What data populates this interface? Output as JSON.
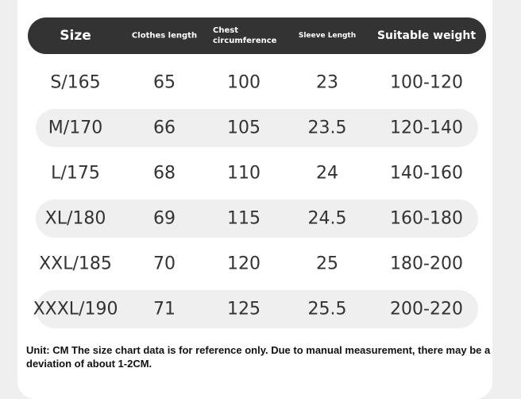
{
  "table": {
    "header": [
      "Size",
      "Clothes length",
      "Chest circumference",
      "Sleeve Length",
      "Suitable weight"
    ],
    "rows": [
      [
        "S/165",
        65,
        100,
        23,
        "100-120"
      ],
      [
        "M/170",
        66,
        105,
        23.5,
        "120-140"
      ],
      [
        "L/175",
        68,
        110,
        24,
        "140-160"
      ],
      [
        "XL/180",
        69,
        115,
        24.5,
        "160-180"
      ],
      [
        "XXL/185",
        70,
        120,
        25,
        "180-200"
      ],
      [
        "XXXL/190",
        71,
        125,
        25.5,
        "200-220"
      ]
    ]
  },
  "note": "Unit: CM The size chart data is for reference only. Due to manual measurement, there may be a deviation of about 1-2CM."
}
